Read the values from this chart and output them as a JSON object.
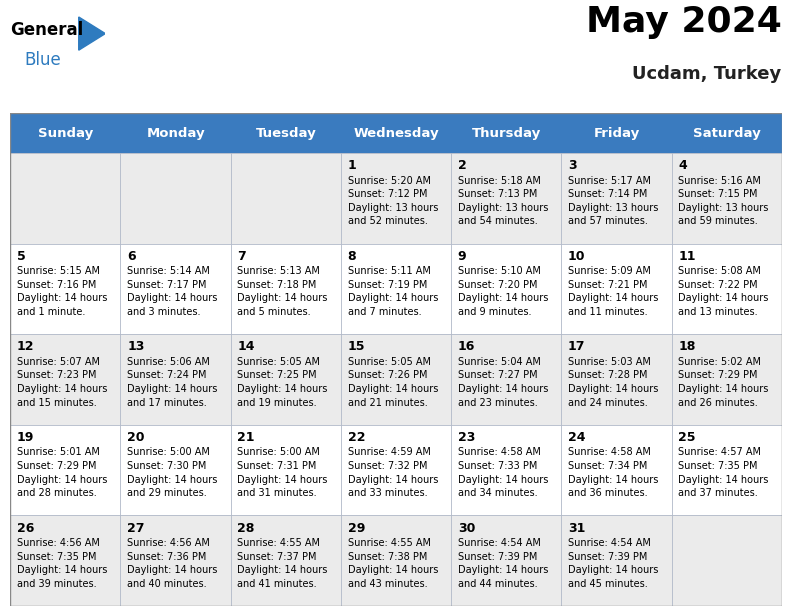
{
  "title": "May 2024",
  "subtitle": "Ucdam, Turkey",
  "header_color": "#3a7bbf",
  "header_text_color": "#ffffff",
  "row_colors": [
    "#ebebeb",
    "#ffffff",
    "#ebebeb",
    "#ffffff",
    "#ebebeb"
  ],
  "day_names": [
    "Sunday",
    "Monday",
    "Tuesday",
    "Wednesday",
    "Thursday",
    "Friday",
    "Saturday"
  ],
  "title_fontsize": 26,
  "subtitle_fontsize": 13,
  "header_fontsize": 9.5,
  "cell_day_fontsize": 9,
  "cell_text_fontsize": 7,
  "days": [
    {
      "day": 1,
      "col": 3,
      "row": 0,
      "sunrise": "5:20 AM",
      "sunset": "7:12 PM",
      "daylight": "13 hours\nand 52 minutes."
    },
    {
      "day": 2,
      "col": 4,
      "row": 0,
      "sunrise": "5:18 AM",
      "sunset": "7:13 PM",
      "daylight": "13 hours\nand 54 minutes."
    },
    {
      "day": 3,
      "col": 5,
      "row": 0,
      "sunrise": "5:17 AM",
      "sunset": "7:14 PM",
      "daylight": "13 hours\nand 57 minutes."
    },
    {
      "day": 4,
      "col": 6,
      "row": 0,
      "sunrise": "5:16 AM",
      "sunset": "7:15 PM",
      "daylight": "13 hours\nand 59 minutes."
    },
    {
      "day": 5,
      "col": 0,
      "row": 1,
      "sunrise": "5:15 AM",
      "sunset": "7:16 PM",
      "daylight": "14 hours\nand 1 minute."
    },
    {
      "day": 6,
      "col": 1,
      "row": 1,
      "sunrise": "5:14 AM",
      "sunset": "7:17 PM",
      "daylight": "14 hours\nand 3 minutes."
    },
    {
      "day": 7,
      "col": 2,
      "row": 1,
      "sunrise": "5:13 AM",
      "sunset": "7:18 PM",
      "daylight": "14 hours\nand 5 minutes."
    },
    {
      "day": 8,
      "col": 3,
      "row": 1,
      "sunrise": "5:11 AM",
      "sunset": "7:19 PM",
      "daylight": "14 hours\nand 7 minutes."
    },
    {
      "day": 9,
      "col": 4,
      "row": 1,
      "sunrise": "5:10 AM",
      "sunset": "7:20 PM",
      "daylight": "14 hours\nand 9 minutes."
    },
    {
      "day": 10,
      "col": 5,
      "row": 1,
      "sunrise": "5:09 AM",
      "sunset": "7:21 PM",
      "daylight": "14 hours\nand 11 minutes."
    },
    {
      "day": 11,
      "col": 6,
      "row": 1,
      "sunrise": "5:08 AM",
      "sunset": "7:22 PM",
      "daylight": "14 hours\nand 13 minutes."
    },
    {
      "day": 12,
      "col": 0,
      "row": 2,
      "sunrise": "5:07 AM",
      "sunset": "7:23 PM",
      "daylight": "14 hours\nand 15 minutes."
    },
    {
      "day": 13,
      "col": 1,
      "row": 2,
      "sunrise": "5:06 AM",
      "sunset": "7:24 PM",
      "daylight": "14 hours\nand 17 minutes."
    },
    {
      "day": 14,
      "col": 2,
      "row": 2,
      "sunrise": "5:05 AM",
      "sunset": "7:25 PM",
      "daylight": "14 hours\nand 19 minutes."
    },
    {
      "day": 15,
      "col": 3,
      "row": 2,
      "sunrise": "5:05 AM",
      "sunset": "7:26 PM",
      "daylight": "14 hours\nand 21 minutes."
    },
    {
      "day": 16,
      "col": 4,
      "row": 2,
      "sunrise": "5:04 AM",
      "sunset": "7:27 PM",
      "daylight": "14 hours\nand 23 minutes."
    },
    {
      "day": 17,
      "col": 5,
      "row": 2,
      "sunrise": "5:03 AM",
      "sunset": "7:28 PM",
      "daylight": "14 hours\nand 24 minutes."
    },
    {
      "day": 18,
      "col": 6,
      "row": 2,
      "sunrise": "5:02 AM",
      "sunset": "7:29 PM",
      "daylight": "14 hours\nand 26 minutes."
    },
    {
      "day": 19,
      "col": 0,
      "row": 3,
      "sunrise": "5:01 AM",
      "sunset": "7:29 PM",
      "daylight": "14 hours\nand 28 minutes."
    },
    {
      "day": 20,
      "col": 1,
      "row": 3,
      "sunrise": "5:00 AM",
      "sunset": "7:30 PM",
      "daylight": "14 hours\nand 29 minutes."
    },
    {
      "day": 21,
      "col": 2,
      "row": 3,
      "sunrise": "5:00 AM",
      "sunset": "7:31 PM",
      "daylight": "14 hours\nand 31 minutes."
    },
    {
      "day": 22,
      "col": 3,
      "row": 3,
      "sunrise": "4:59 AM",
      "sunset": "7:32 PM",
      "daylight": "14 hours\nand 33 minutes."
    },
    {
      "day": 23,
      "col": 4,
      "row": 3,
      "sunrise": "4:58 AM",
      "sunset": "7:33 PM",
      "daylight": "14 hours\nand 34 minutes."
    },
    {
      "day": 24,
      "col": 5,
      "row": 3,
      "sunrise": "4:58 AM",
      "sunset": "7:34 PM",
      "daylight": "14 hours\nand 36 minutes."
    },
    {
      "day": 25,
      "col": 6,
      "row": 3,
      "sunrise": "4:57 AM",
      "sunset": "7:35 PM",
      "daylight": "14 hours\nand 37 minutes."
    },
    {
      "day": 26,
      "col": 0,
      "row": 4,
      "sunrise": "4:56 AM",
      "sunset": "7:35 PM",
      "daylight": "14 hours\nand 39 minutes."
    },
    {
      "day": 27,
      "col": 1,
      "row": 4,
      "sunrise": "4:56 AM",
      "sunset": "7:36 PM",
      "daylight": "14 hours\nand 40 minutes."
    },
    {
      "day": 28,
      "col": 2,
      "row": 4,
      "sunrise": "4:55 AM",
      "sunset": "7:37 PM",
      "daylight": "14 hours\nand 41 minutes."
    },
    {
      "day": 29,
      "col": 3,
      "row": 4,
      "sunrise": "4:55 AM",
      "sunset": "7:38 PM",
      "daylight": "14 hours\nand 43 minutes."
    },
    {
      "day": 30,
      "col": 4,
      "row": 4,
      "sunrise": "4:54 AM",
      "sunset": "7:39 PM",
      "daylight": "14 hours\nand 44 minutes."
    },
    {
      "day": 31,
      "col": 5,
      "row": 4,
      "sunrise": "4:54 AM",
      "sunset": "7:39 PM",
      "daylight": "14 hours\nand 45 minutes."
    }
  ]
}
